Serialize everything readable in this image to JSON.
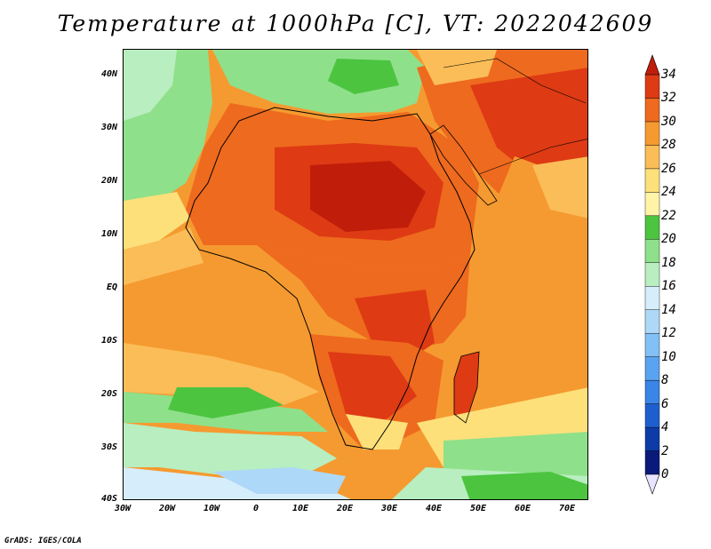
{
  "title": "Temperature at 1000hPa [C], VT: 2022042609",
  "footer": "GrADS: IGES/COLA",
  "lat_labels": [
    "40N",
    "30N",
    "20N",
    "10N",
    "EQ",
    "10S",
    "20S",
    "30S",
    "40S"
  ],
  "lon_labels": [
    "30W",
    "20W",
    "10W",
    "0",
    "10E",
    "20E",
    "30E",
    "40E",
    "50E",
    "60E",
    "70E"
  ],
  "colorbar": {
    "levels": [
      "0",
      "2",
      "4",
      "6",
      "8",
      "10",
      "12",
      "14",
      "16",
      "18",
      "20",
      "22",
      "24",
      "26",
      "28",
      "30",
      "32",
      "34"
    ],
    "colors": [
      "#0a1a7a",
      "#0d3ca8",
      "#1e5fd0",
      "#3a85e8",
      "#5aa3f0",
      "#82c0f5",
      "#aed8f8",
      "#d6eefb",
      "#b8eec0",
      "#8fe08a",
      "#4cc440",
      "#fff3a8",
      "#fde07a",
      "#fbbd58",
      "#f59a30",
      "#ee6a1e",
      "#de3a14"
    ],
    "under_color": "#e8e4ff",
    "over_color": "#c01e0a"
  }
}
